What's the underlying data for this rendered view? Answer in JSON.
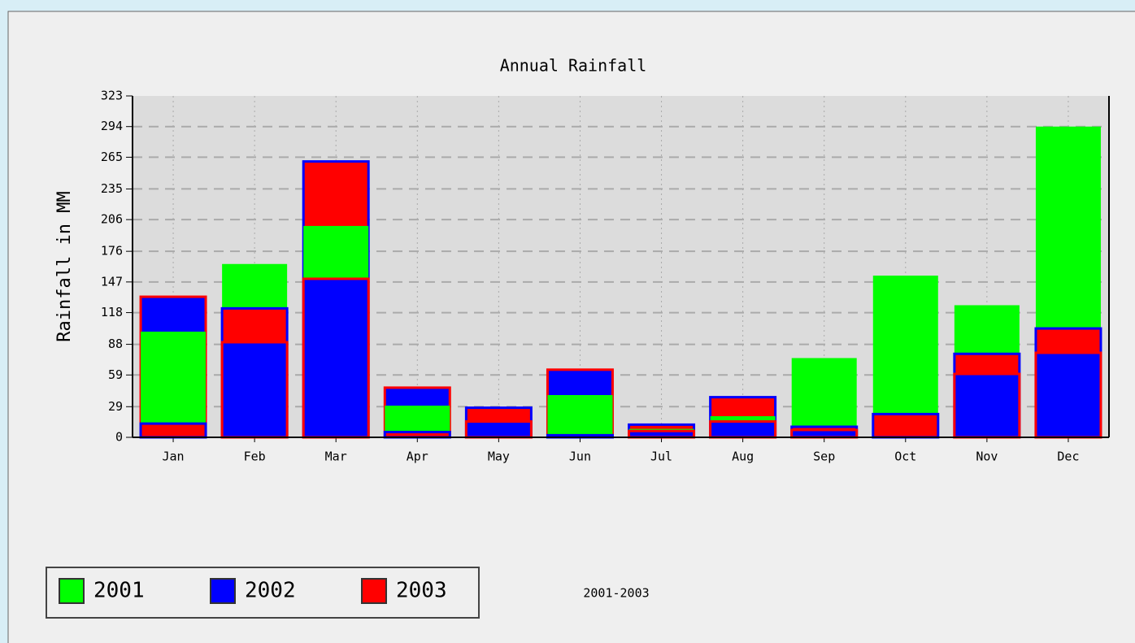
{
  "chart_data": {
    "type": "bar",
    "title": "Annual Rainfall",
    "subtitle": "2001-2003",
    "y_label": "Rainfall in MM",
    "categories": [
      "Jan",
      "Feb",
      "Mar",
      "Apr",
      "May",
      "Jun",
      "Jul",
      "Aug",
      "Sep",
      "Oct",
      "Nov",
      "Dec"
    ],
    "series": [
      {
        "name": "2001",
        "color": "#00ff00",
        "values": [
          100,
          164,
          200,
          30,
          0,
          40,
          8,
          20,
          75,
          153,
          125,
          294
        ]
      },
      {
        "name": "2002",
        "color": "#0000ff",
        "values": [
          133,
          90,
          150,
          47,
          15,
          64,
          6,
          15,
          7,
          0,
          60,
          80
        ]
      },
      {
        "name": "2003",
        "color": "#ff0000",
        "values": [
          13,
          122,
          261,
          5,
          28,
          2,
          12,
          38,
          10,
          22,
          79,
          103
        ]
      }
    ],
    "ylim": [
      0,
      323
    ],
    "yticks": [
      0,
      29,
      59,
      88,
      118,
      147,
      176,
      206,
      235,
      265,
      294,
      323
    ],
    "grid": true,
    "legend": "bottom-left"
  }
}
